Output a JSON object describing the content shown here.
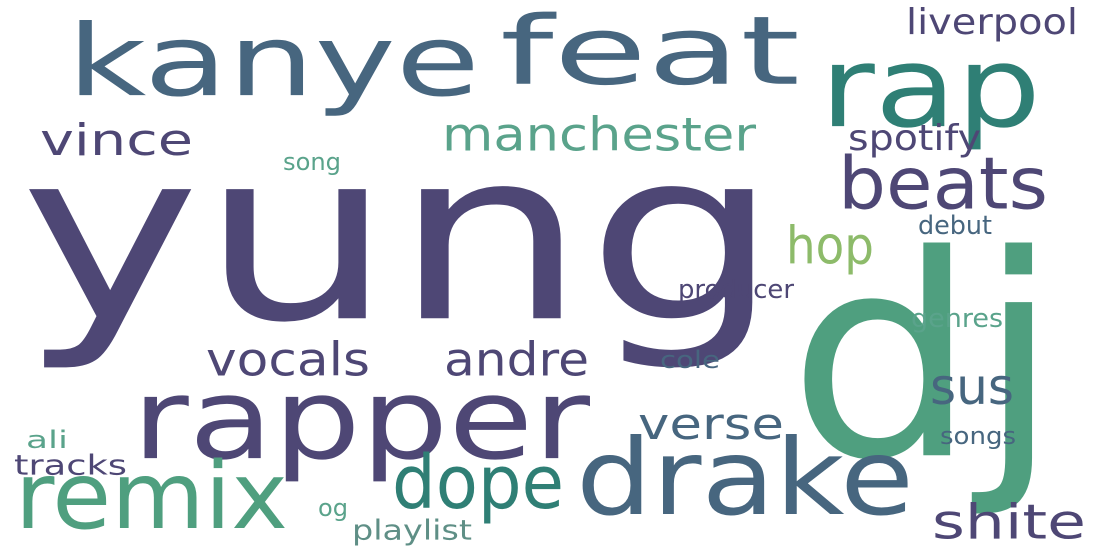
{
  "colors": {
    "background": "#ffffff",
    "deep_purple": "#4e4775",
    "slate_blue": "#47667f",
    "teal": "#2f7f75",
    "green": "#4f9f7f",
    "sea_green": "#5aa38b",
    "light_green": "#8dbb6a",
    "dusty_teal": "#5f8f86"
  },
  "words": [
    {
      "id": "yung",
      "text": "yung",
      "color": "deep_purple"
    },
    {
      "id": "dj",
      "text": "dj",
      "color": "green"
    },
    {
      "id": "kanye",
      "text": "kanye",
      "color": "slate_blue"
    },
    {
      "id": "feat",
      "text": "feat",
      "color": "slate_blue"
    },
    {
      "id": "rap",
      "text": "rap",
      "color": "teal"
    },
    {
      "id": "rapper",
      "text": "rapper",
      "color": "deep_purple"
    },
    {
      "id": "drake",
      "text": "drake",
      "color": "slate_blue"
    },
    {
      "id": "remix",
      "text": "remix",
      "color": "green"
    },
    {
      "id": "beats",
      "text": "beats",
      "color": "deep_purple"
    },
    {
      "id": "manchester",
      "text": "manchester",
      "color": "sea_green"
    },
    {
      "id": "vince",
      "text": "vince",
      "color": "deep_purple"
    },
    {
      "id": "liverpool",
      "text": "liverpool",
      "color": "deep_purple"
    },
    {
      "id": "spotify",
      "text": "spotify",
      "color": "deep_purple"
    },
    {
      "id": "hop",
      "text": "hop",
      "color": "light_green"
    },
    {
      "id": "vocals",
      "text": "vocals",
      "color": "deep_purple"
    },
    {
      "id": "andre",
      "text": "andre",
      "color": "deep_purple"
    },
    {
      "id": "sus",
      "text": "sus",
      "color": "slate_blue"
    },
    {
      "id": "verse",
      "text": "verse",
      "color": "slate_blue"
    },
    {
      "id": "dope",
      "text": "dope",
      "color": "teal"
    },
    {
      "id": "shite",
      "text": "shite",
      "color": "deep_purple"
    },
    {
      "id": "song",
      "text": "song",
      "color": "sea_green"
    },
    {
      "id": "debut",
      "text": "debut",
      "color": "slate_blue"
    },
    {
      "id": "producer",
      "text": "producer",
      "color": "deep_purple"
    },
    {
      "id": "genres",
      "text": "genres",
      "color": "sea_green"
    },
    {
      "id": "cole",
      "text": "cole",
      "color": "slate_blue"
    },
    {
      "id": "ali",
      "text": "ali",
      "color": "sea_green"
    },
    {
      "id": "tracks",
      "text": "tracks",
      "color": "deep_purple"
    },
    {
      "id": "songs",
      "text": "songs",
      "color": "slate_blue"
    },
    {
      "id": "og",
      "text": "og",
      "color": "sea_green"
    },
    {
      "id": "playlist",
      "text": "playlist",
      "color": "dusty_teal"
    }
  ]
}
